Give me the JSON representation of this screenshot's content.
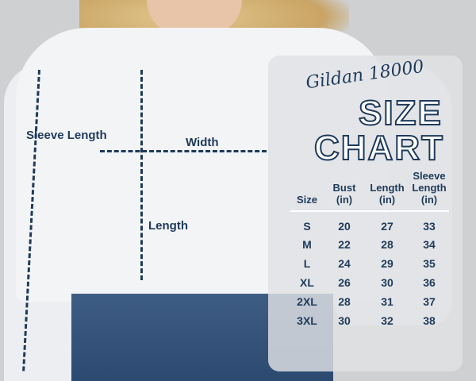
{
  "overlay_labels": {
    "sleeve_length": "Sleeve Length",
    "width": "Width",
    "length": "Length"
  },
  "chart": {
    "brand": "Gildan 18000",
    "title_line1": "SIZE",
    "title_line2": "CHART",
    "headers": [
      "Size",
      "Bust (in)",
      "Length (in)",
      "Sleeve Length (in)"
    ],
    "rows": [
      [
        "S",
        "20",
        "27",
        "33"
      ],
      [
        "M",
        "22",
        "28",
        "34"
      ],
      [
        "L",
        "24",
        "29",
        "35"
      ],
      [
        "XL",
        "26",
        "30",
        "36"
      ],
      [
        "2XL",
        "28",
        "31",
        "37"
      ],
      [
        "3XL",
        "30",
        "32",
        "38"
      ]
    ]
  },
  "colors": {
    "text": "#1e3a5a",
    "panel": "#e1e2e4"
  }
}
